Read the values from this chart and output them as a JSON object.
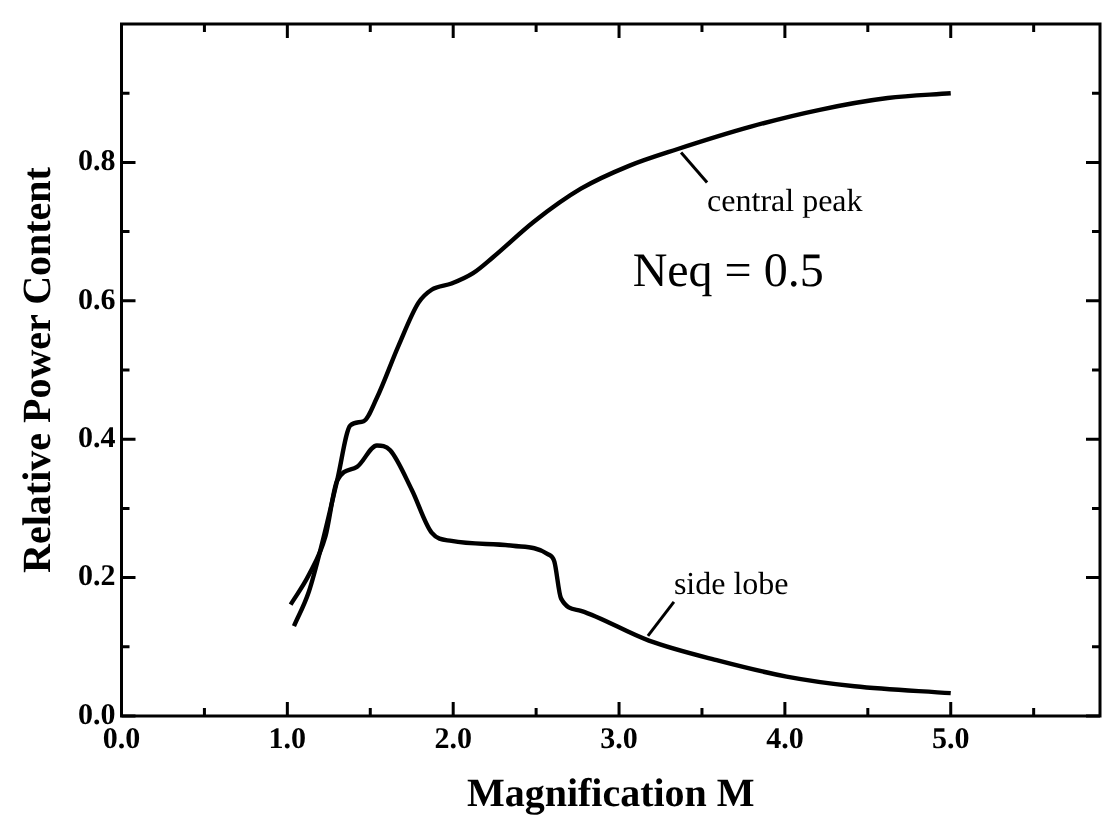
{
  "chart_data": {
    "type": "line",
    "xlabel": "Magnification M",
    "ylabel": "Relative Power Content",
    "xlim": [
      0,
      5.9
    ],
    "ylim": [
      0,
      1.0
    ],
    "xticks": [
      {
        "value": 0,
        "label": "0.0"
      },
      {
        "value": 0.5,
        "label": null
      },
      {
        "value": 1,
        "label": "1.0"
      },
      {
        "value": 1.5,
        "label": null
      },
      {
        "value": 2,
        "label": "2.0"
      },
      {
        "value": 2.5,
        "label": null
      },
      {
        "value": 3,
        "label": "3.0"
      },
      {
        "value": 3.5,
        "label": null
      },
      {
        "value": 4,
        "label": "4.0"
      },
      {
        "value": 4.5,
        "label": null
      },
      {
        "value": 5,
        "label": "5.0"
      },
      {
        "value": 5.5,
        "label": null
      }
    ],
    "yticks": [
      {
        "value": 0,
        "label": "0.0"
      },
      {
        "value": 0.1,
        "label": null
      },
      {
        "value": 0.2,
        "label": "0.2"
      },
      {
        "value": 0.3,
        "label": null
      },
      {
        "value": 0.4,
        "label": "0.4"
      },
      {
        "value": 0.5,
        "label": null
      },
      {
        "value": 0.6,
        "label": "0.6"
      },
      {
        "value": 0.7,
        "label": null
      },
      {
        "value": 0.8,
        "label": "0.8"
      },
      {
        "value": 0.9,
        "label": null
      }
    ],
    "grid": false,
    "legend": false,
    "marker": "none",
    "line_style": "solid",
    "series": [
      {
        "color": "#000000",
        "x": [
          1.04,
          1.13,
          1.21,
          1.3,
          1.38,
          1.46,
          1.54,
          1.67,
          1.79,
          1.87,
          1.99,
          2.12,
          2.24,
          2.49,
          2.77,
          3.06,
          3.35,
          3.8,
          4.21,
          4.62,
          5.0
        ],
        "values": [
          0.13,
          0.18,
          0.25,
          0.34,
          0.42,
          0.426,
          0.46,
          0.535,
          0.597,
          0.616,
          0.625,
          0.64,
          0.663,
          0.715,
          0.762,
          0.795,
          0.819,
          0.852,
          0.876,
          0.893,
          0.9
        ]
      },
      {
        "color": "#000000",
        "x": [
          1.02,
          1.13,
          1.23,
          1.3,
          1.42,
          1.54,
          1.62,
          1.75,
          1.87,
          1.99,
          2.36,
          2.57,
          2.61,
          2.65,
          2.77,
          3.18,
          3.6,
          4.01,
          4.42,
          5.0
        ],
        "values": [
          0.161,
          0.204,
          0.26,
          0.34,
          0.36,
          0.391,
          0.384,
          0.327,
          0.265,
          0.253,
          0.246,
          0.234,
          0.223,
          0.17,
          0.152,
          0.109,
          0.08,
          0.057,
          0.043,
          0.033
        ]
      }
    ],
    "annotations": [
      {
        "text": "central peak",
        "x": 3.35,
        "y": 0.82
      },
      {
        "text": "side lobe",
        "x": 3.15,
        "y": 0.11
      },
      "Neq = 0.5"
    ]
  }
}
